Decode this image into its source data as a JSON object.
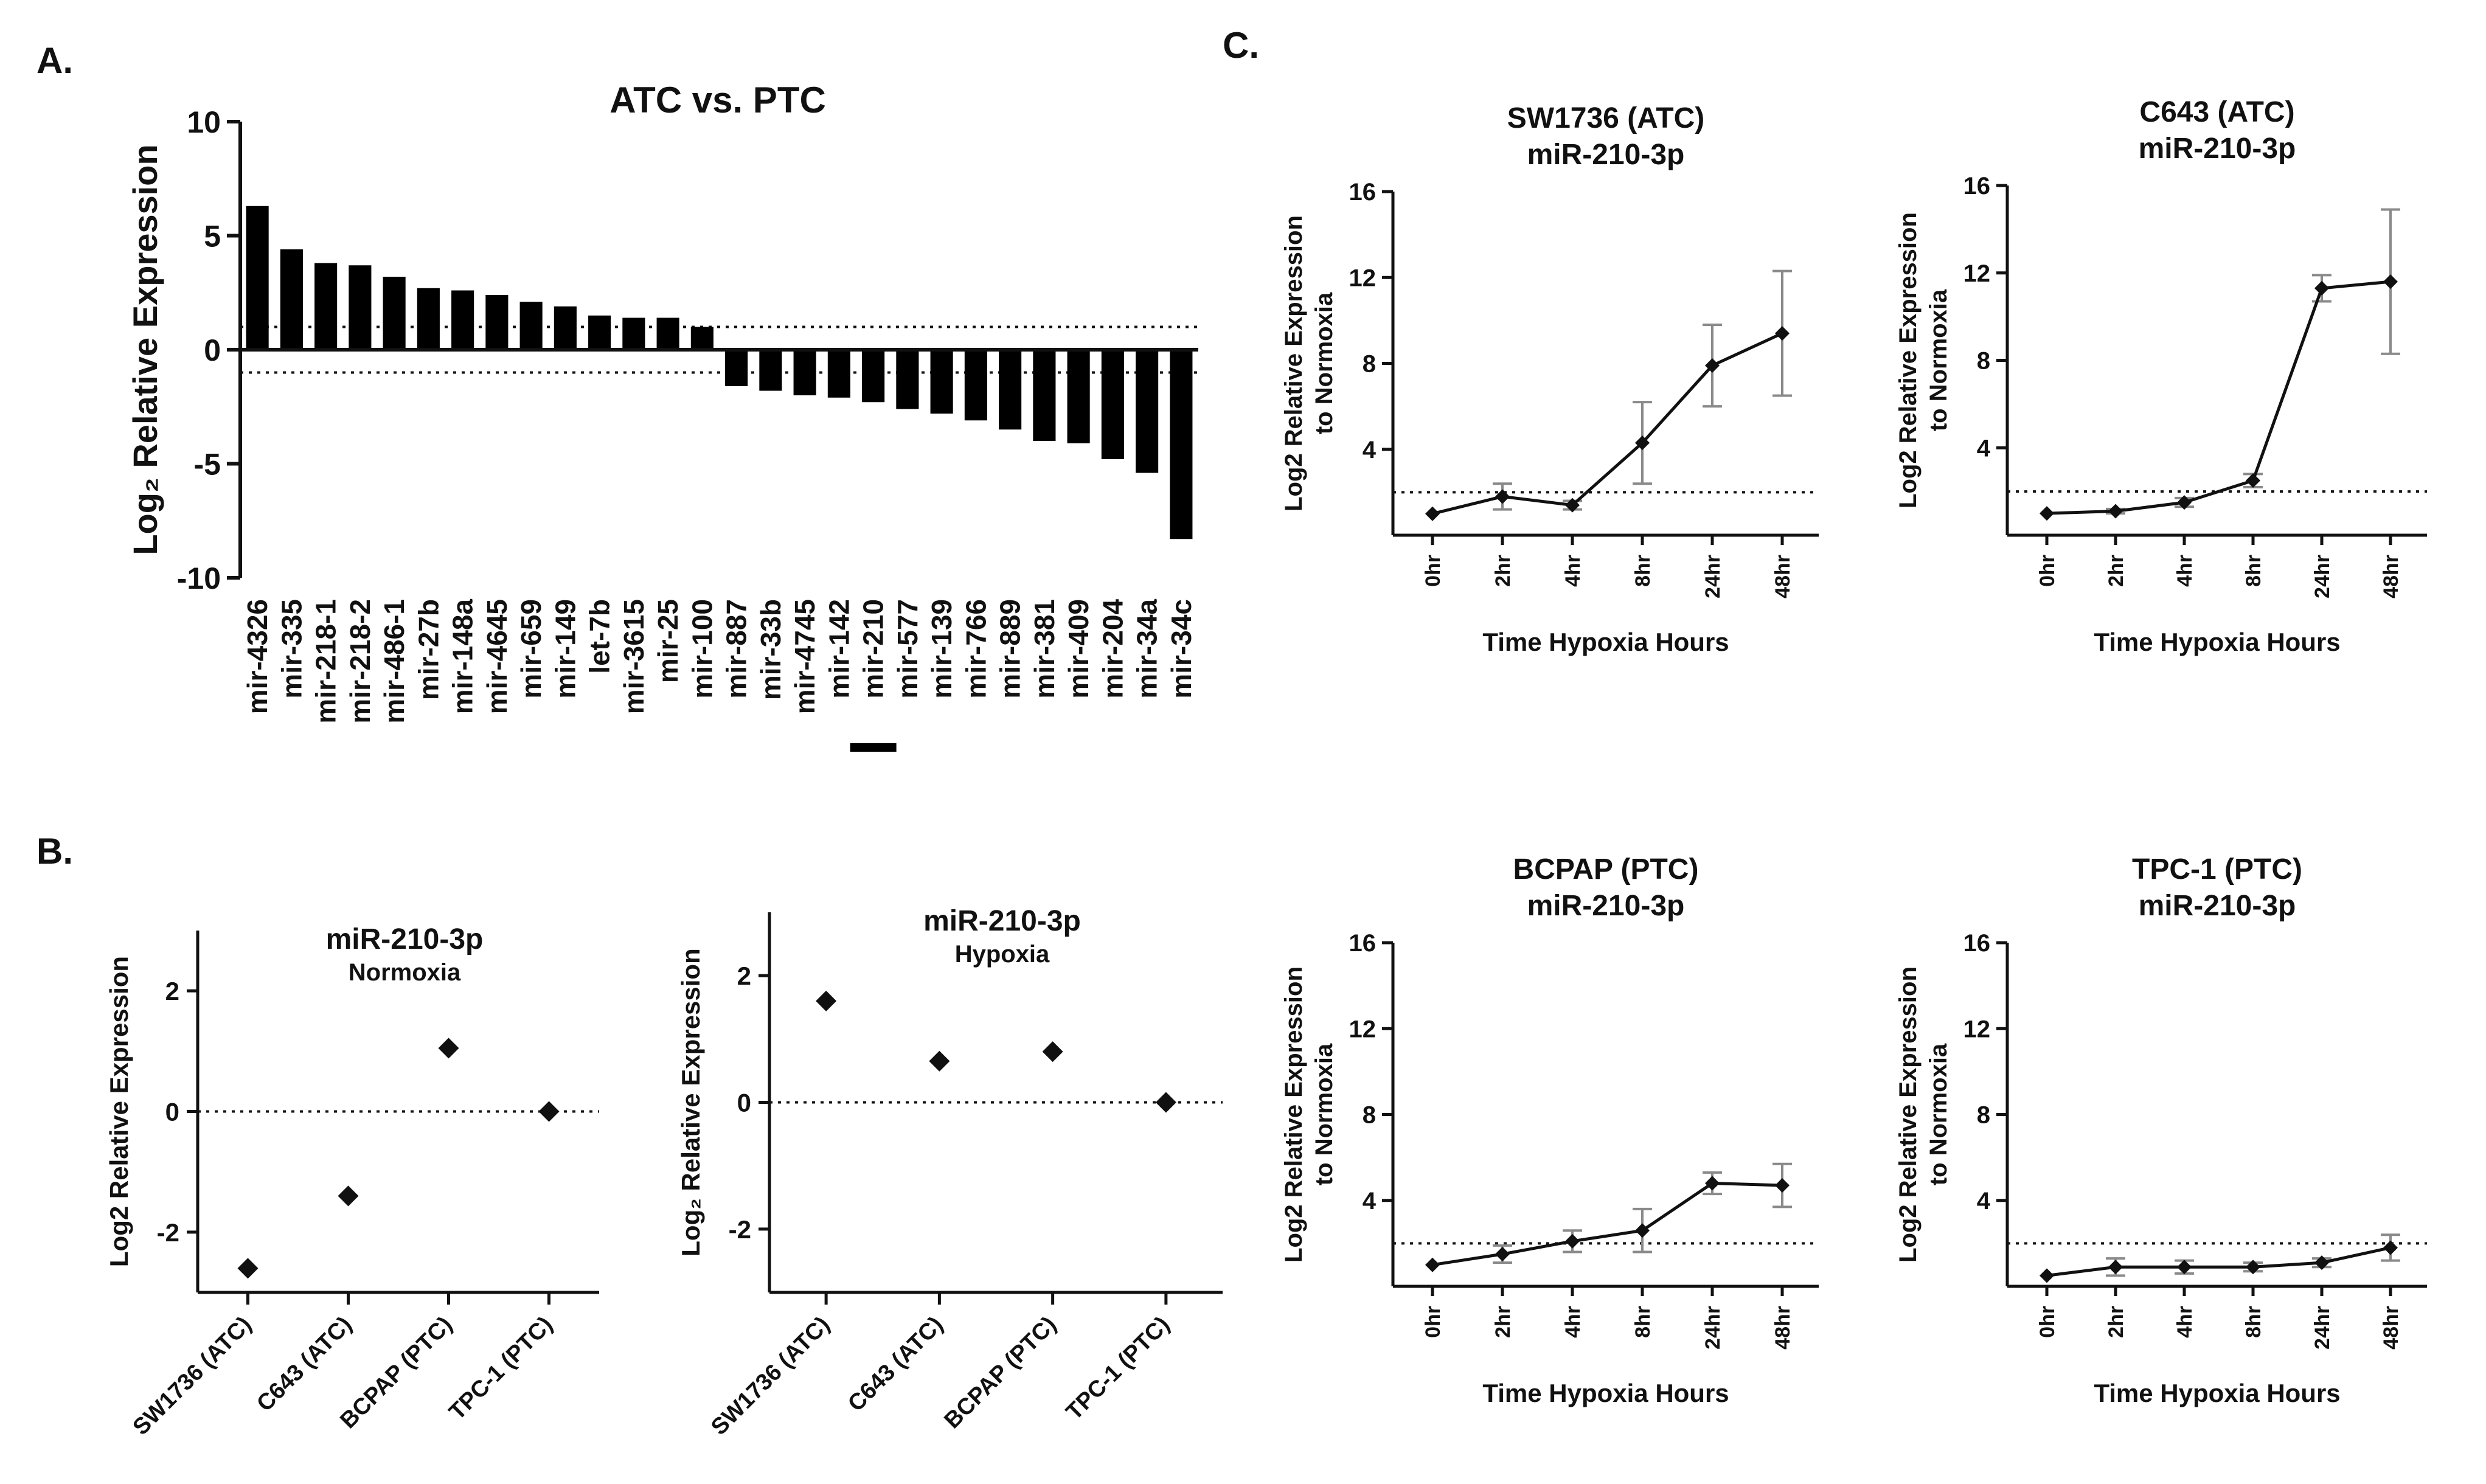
{
  "figure": {
    "panel_labels": [
      "A.",
      "B.",
      "C."
    ]
  },
  "chart_data": [
    {
      "id": "A",
      "type": "bar",
      "title": "ATC vs. PTC",
      "ylabel": "Log₂ Relative Expression",
      "xlabel": "",
      "ylim": [
        -10,
        10
      ],
      "yticks": [
        -10,
        -5,
        0,
        5,
        10
      ],
      "reference_lines": [
        1,
        -1
      ],
      "highlighted_category": "mir-210",
      "categories": [
        "mir-4326",
        "mir-335",
        "mir-218-1",
        "mir-218-2",
        "mir-486-1",
        "mir-27b",
        "mir-148a",
        "mir-4645",
        "mir-659",
        "mir-149",
        "let-7b",
        "mir-3615",
        "mir-25",
        "mir-100",
        "mir-887",
        "mir-33b",
        "mir-4745",
        "mir-142",
        "mir-210",
        "mir-577",
        "mir-139",
        "mir-766",
        "mir-889",
        "mir-381",
        "mir-409",
        "mir-204",
        "mir-34a",
        "mir-34c"
      ],
      "values": [
        6.3,
        4.4,
        3.8,
        3.7,
        3.2,
        2.7,
        2.6,
        2.4,
        2.1,
        1.9,
        1.5,
        1.4,
        1.4,
        1.0,
        -1.6,
        -1.8,
        -2.0,
        -2.1,
        -2.3,
        -2.6,
        -2.8,
        -3.1,
        -3.5,
        -4.0,
        -4.1,
        -4.8,
        -5.4,
        -8.3
      ]
    },
    {
      "id": "B1",
      "type": "scatter",
      "title": "miR-210-3p",
      "subtitle": "Normoxia",
      "ylabel": "Log2 Relative Expression",
      "ylim": [
        -3,
        3
      ],
      "yticks": [
        -2,
        0,
        2
      ],
      "reference_lines": [
        0
      ],
      "categories": [
        "SW1736 (ATC)",
        "C643 (ATC)",
        "BCPAP (PTC)",
        "TPC-1 (PTC)"
      ],
      "values": [
        -2.6,
        -1.4,
        1.05,
        0.0
      ]
    },
    {
      "id": "B2",
      "type": "scatter",
      "title": "miR-210-3p",
      "subtitle": "Hypoxia",
      "ylabel": "Log₂ Relative Expression",
      "ylim": [
        -3,
        3
      ],
      "yticks": [
        -2,
        0,
        2
      ],
      "reference_lines": [
        0
      ],
      "categories": [
        "SW1736 (ATC)",
        "C643 (ATC)",
        "BCPAP (PTC)",
        "TPC-1 (PTC)"
      ],
      "values": [
        1.6,
        0.65,
        0.8,
        0.0
      ]
    },
    {
      "id": "C1",
      "type": "line",
      "title": "SW1736 (ATC)",
      "subtitle": "miR-210-3p",
      "ylabel": "Log2 Relative Expression",
      "ylabel2": "to Normoxia",
      "xlabel": "Time Hypoxia Hours",
      "ylim": [
        0,
        16
      ],
      "yticks": [
        4,
        8,
        12,
        16
      ],
      "reference_lines": [
        2
      ],
      "x": [
        "0hr",
        "2hr",
        "4hr",
        "8hr",
        "24hr",
        "48hr"
      ],
      "values": [
        1.0,
        1.8,
        1.4,
        4.3,
        7.9,
        9.4
      ],
      "errors": [
        0.0,
        0.6,
        0.2,
        1.9,
        1.9,
        2.9
      ]
    },
    {
      "id": "C2",
      "type": "line",
      "title": "C643 (ATC)",
      "subtitle": "miR-210-3p",
      "ylabel": "Log2 Relative Expression",
      "ylabel2": "to Normoxia",
      "xlabel": "Time Hypoxia Hours",
      "ylim": [
        0,
        16
      ],
      "yticks": [
        4,
        8,
        12,
        16
      ],
      "reference_lines": [
        2
      ],
      "x": [
        "0hr",
        "2hr",
        "4hr",
        "8hr",
        "24hr",
        "48hr"
      ],
      "values": [
        1.0,
        1.1,
        1.5,
        2.5,
        11.3,
        11.6
      ],
      "errors": [
        0.0,
        0.1,
        0.2,
        0.3,
        0.6,
        3.3
      ]
    },
    {
      "id": "C3",
      "type": "line",
      "title": "BCPAP (PTC)",
      "subtitle": "miR-210-3p",
      "ylabel": "Log2 Relative Expression",
      "ylabel2": "to Normoxia",
      "xlabel": "Time Hypoxia Hours",
      "ylim": [
        0,
        16
      ],
      "yticks": [
        4,
        8,
        12,
        16
      ],
      "reference_lines": [
        2
      ],
      "x": [
        "0hr",
        "2hr",
        "4hr",
        "8hr",
        "24hr",
        "48hr"
      ],
      "values": [
        1.0,
        1.5,
        2.1,
        2.6,
        4.8,
        4.7
      ],
      "errors": [
        0.0,
        0.4,
        0.5,
        1.0,
        0.5,
        1.0
      ]
    },
    {
      "id": "C4",
      "type": "line",
      "title": "TPC-1 (PTC)",
      "subtitle": "miR-210-3p",
      "ylabel": "Log2 Relative Expression",
      "ylabel2": "to Normoxia",
      "xlabel": "Time Hypoxia Hours",
      "ylim": [
        0,
        16
      ],
      "yticks": [
        4,
        8,
        12,
        16
      ],
      "reference_lines": [
        2
      ],
      "x": [
        "0hr",
        "2hr",
        "4hr",
        "8hr",
        "24hr",
        "48hr"
      ],
      "values": [
        0.5,
        0.9,
        0.9,
        0.9,
        1.1,
        1.8
      ],
      "errors": [
        0.0,
        0.4,
        0.3,
        0.2,
        0.2,
        0.6
      ]
    }
  ]
}
